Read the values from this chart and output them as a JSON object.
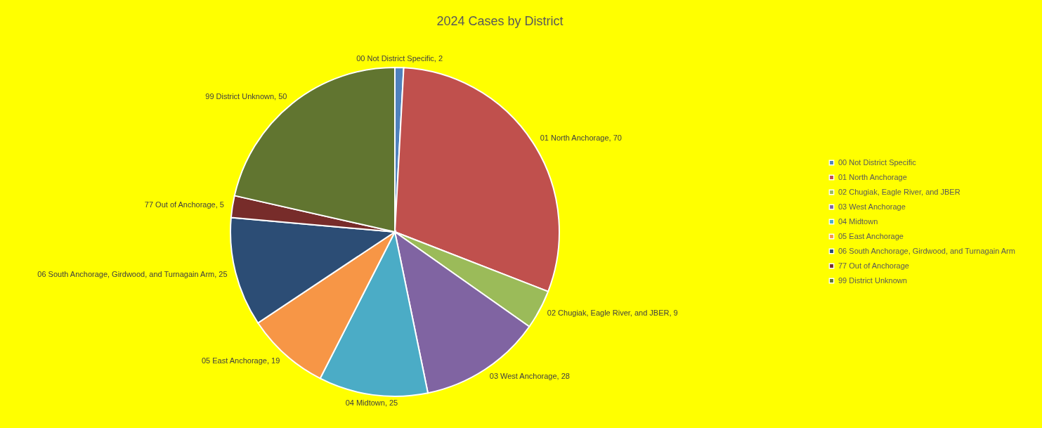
{
  "chart_data": {
    "type": "pie",
    "title": "2024 Cases by District",
    "categories": [
      "00 Not District Specific",
      "01 North Anchorage",
      "02 Chugiak, Eagle River, and JBER",
      "03 West Anchorage",
      "04 Midtown",
      "05 East Anchorage",
      "06 South Anchorage, Girdwood, and Turnagain Arm",
      "77 Out of Anchorage",
      "99 District Unknown"
    ],
    "values": [
      2,
      70,
      9,
      28,
      25,
      19,
      25,
      5,
      50
    ],
    "colors": [
      "#4f81bd",
      "#c0504d",
      "#9bbb59",
      "#8064a2",
      "#4bacc6",
      "#f79646",
      "#2c4d75",
      "#772c2a",
      "#617530"
    ],
    "value_labels": [
      "00 Not District Specific, 2",
      "01 North Anchorage, 70",
      "02 Chugiak, Eagle River, and JBER, 9",
      "03 West Anchorage, 28",
      "04 Midtown, 25",
      "05 East Anchorage, 19",
      "06 South Anchorage, Girdwood, and Turnagain Arm, 25",
      "77 Out of Anchorage, 5",
      "99 District Unknown, 50"
    ],
    "legend": "right"
  }
}
